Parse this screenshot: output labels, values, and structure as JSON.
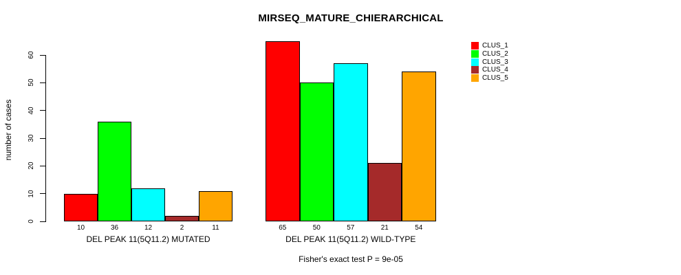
{
  "chart_data": {
    "type": "bar",
    "title": "MIRSEQ_MATURE_CHIERARCHICAL",
    "ylabel": "number of cases",
    "xlabel": "",
    "ylim": [
      0,
      60
    ],
    "yticks": [
      0,
      10,
      20,
      30,
      40,
      50,
      60
    ],
    "grid": false,
    "legend_position": "top-right",
    "background": "#ffffff",
    "categories": [
      "DEL PEAK 11(5Q11.2) MUTATED",
      "DEL PEAK 11(5Q11.2) WILD-TYPE"
    ],
    "series": [
      {
        "name": "CLUS_1",
        "color": "#ff0000",
        "values": [
          10,
          65
        ]
      },
      {
        "name": "CLUS_2",
        "color": "#00ff00",
        "values": [
          36,
          50
        ]
      },
      {
        "name": "CLUS_3",
        "color": "#00ffff",
        "values": [
          12,
          57
        ]
      },
      {
        "name": "CLUS_4",
        "color": "#a52a2a",
        "values": [
          2,
          21
        ]
      },
      {
        "name": "CLUS_5",
        "color": "#ffa500",
        "values": [
          11,
          54
        ]
      }
    ],
    "bar_value_labels_shown": true,
    "annotation": "Fisher's exact test P = 9e-05"
  }
}
